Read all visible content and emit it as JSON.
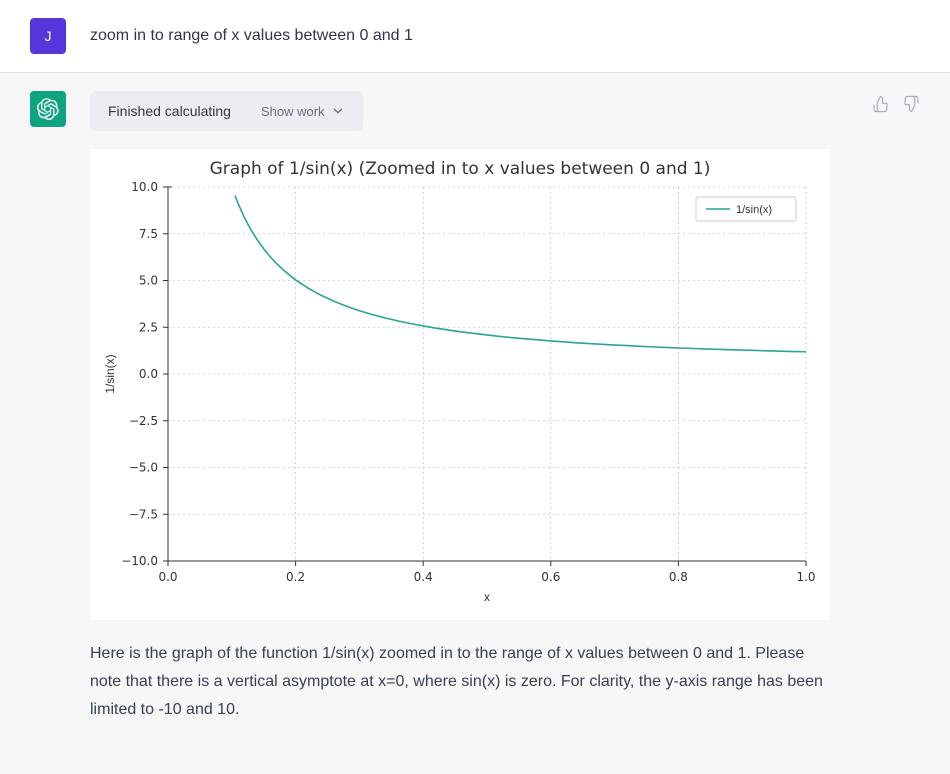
{
  "user": {
    "avatar_letter": "J",
    "avatar_bg": "#5436DA",
    "message": "zoom in to range of x values between 0 and 1"
  },
  "assistant": {
    "avatar_bg": "#10a37f",
    "tool_status": "Finished calculating",
    "show_work_label": "Show work",
    "response_text": "Here is the graph of the function 1/sin(x) zoomed in to the range of x values between 0 and 1. Please note that there is a vertical asymptote at x=0, where sin(x) is zero. For clarity, the y-axis range has been limited to -10 and 10."
  },
  "chart": {
    "type": "line",
    "title": "Graph of 1/sin(x) (Zoomed in to x values between 0 and 1)",
    "title_fontsize": 17,
    "xlabel": "x",
    "ylabel": "1/sin(x)",
    "label_fontsize": 12,
    "xlim": [
      0.0,
      1.0
    ],
    "ylim": [
      -10.0,
      10.0
    ],
    "xticks": [
      0.0,
      0.2,
      0.4,
      0.6,
      0.8,
      1.0
    ],
    "yticks": [
      -10.0,
      -7.5,
      -5.0,
      -2.5,
      0.0,
      2.5,
      5.0,
      7.5,
      10.0
    ],
    "line_color": "#2ca58d",
    "line_width": 1.6,
    "grid_color": "#b0b0b0",
    "grid_dash": "2,3",
    "background_color": "#ffffff",
    "spine_color": "#333333",
    "tick_color": "#333333",
    "legend_label": "1/sin(x)",
    "legend_position": "top-right",
    "legend_border": "#cccccc",
    "series": [
      {
        "x": 0.1,
        "y": 10.02
      },
      {
        "x": 0.105,
        "y": 9.54
      },
      {
        "x": 0.11,
        "y": 9.11
      },
      {
        "x": 0.12,
        "y": 8.35
      },
      {
        "x": 0.13,
        "y": 7.71
      },
      {
        "x": 0.14,
        "y": 7.17
      },
      {
        "x": 0.15,
        "y": 6.69
      },
      {
        "x": 0.16,
        "y": 6.28
      },
      {
        "x": 0.17,
        "y": 5.91
      },
      {
        "x": 0.18,
        "y": 5.59
      },
      {
        "x": 0.19,
        "y": 5.3
      },
      {
        "x": 0.2,
        "y": 5.03
      },
      {
        "x": 0.22,
        "y": 4.58
      },
      {
        "x": 0.24,
        "y": 4.21
      },
      {
        "x": 0.26,
        "y": 3.89
      },
      {
        "x": 0.28,
        "y": 3.62
      },
      {
        "x": 0.3,
        "y": 3.38
      },
      {
        "x": 0.32,
        "y": 3.18
      },
      {
        "x": 0.34,
        "y": 3.0
      },
      {
        "x": 0.36,
        "y": 2.84
      },
      {
        "x": 0.38,
        "y": 2.7
      },
      {
        "x": 0.4,
        "y": 2.57
      },
      {
        "x": 0.42,
        "y": 2.45
      },
      {
        "x": 0.44,
        "y": 2.35
      },
      {
        "x": 0.46,
        "y": 2.25
      },
      {
        "x": 0.48,
        "y": 2.17
      },
      {
        "x": 0.5,
        "y": 2.09
      },
      {
        "x": 0.52,
        "y": 2.01
      },
      {
        "x": 0.54,
        "y": 1.94
      },
      {
        "x": 0.56,
        "y": 1.88
      },
      {
        "x": 0.58,
        "y": 1.83
      },
      {
        "x": 0.6,
        "y": 1.77
      },
      {
        "x": 0.62,
        "y": 1.72
      },
      {
        "x": 0.64,
        "y": 1.67
      },
      {
        "x": 0.66,
        "y": 1.63
      },
      {
        "x": 0.68,
        "y": 1.59
      },
      {
        "x": 0.7,
        "y": 1.55
      },
      {
        "x": 0.72,
        "y": 1.52
      },
      {
        "x": 0.74,
        "y": 1.48
      },
      {
        "x": 0.76,
        "y": 1.45
      },
      {
        "x": 0.78,
        "y": 1.42
      },
      {
        "x": 0.8,
        "y": 1.39
      },
      {
        "x": 0.82,
        "y": 1.37
      },
      {
        "x": 0.84,
        "y": 1.34
      },
      {
        "x": 0.86,
        "y": 1.32
      },
      {
        "x": 0.88,
        "y": 1.3
      },
      {
        "x": 0.9,
        "y": 1.28
      },
      {
        "x": 0.92,
        "y": 1.26
      },
      {
        "x": 0.94,
        "y": 1.24
      },
      {
        "x": 0.96,
        "y": 1.22
      },
      {
        "x": 0.98,
        "y": 1.2
      },
      {
        "x": 1.0,
        "y": 1.19
      }
    ]
  }
}
